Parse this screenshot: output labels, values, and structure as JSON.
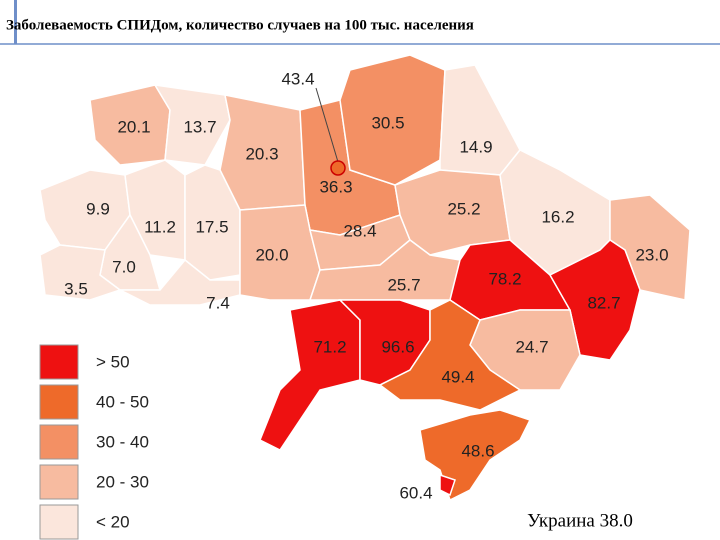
{
  "header": {
    "title": "Заболеваемость СПИДом, количество случаев на 100 тыс. населения"
  },
  "regions": [
    {
      "label": "20.1",
      "color": "#f7bba0"
    },
    {
      "label": "13.7",
      "color": "#fbe6dc"
    },
    {
      "label": "20.3",
      "color": "#f7bba0"
    },
    {
      "label": "36.3",
      "color": "#f39064"
    },
    {
      "label": "30.5",
      "color": "#f39064"
    },
    {
      "label": "14.9",
      "color": "#fbe6dc"
    },
    {
      "label": "9.9",
      "color": "#fbe6dc"
    },
    {
      "label": "11.2",
      "color": "#fbe6dc"
    },
    {
      "label": "17.5",
      "color": "#fbe6dc"
    },
    {
      "label": "7.0",
      "color": "#fbe6dc"
    },
    {
      "label": "3.5",
      "color": "#fbe6dc"
    },
    {
      "label": "7.4",
      "color": "#fbe6dc"
    },
    {
      "label": "20.0",
      "color": "#f7bba0"
    },
    {
      "label": "28.4",
      "color": "#f7bba0"
    },
    {
      "label": "25.2",
      "color": "#f7bba0"
    },
    {
      "label": "16.2",
      "color": "#fbe6dc"
    },
    {
      "label": "23.0",
      "color": "#f7bba0"
    },
    {
      "label": "25.7",
      "color": "#f7bba0"
    },
    {
      "label": "78.2",
      "color": "#ee1111"
    },
    {
      "label": "82.7",
      "color": "#ee1111"
    },
    {
      "label": "71.2",
      "color": "#ee1111"
    },
    {
      "label": "96.6",
      "color": "#ee1111"
    },
    {
      "label": "24.7",
      "color": "#f7bba0"
    },
    {
      "label": "49.4",
      "color": "#ee6a2a"
    },
    {
      "label": "48.6",
      "color": "#ee6a2a"
    },
    {
      "label": "60.4",
      "color": "#ee1111"
    },
    {
      "label": "43.4",
      "color": "#ee6a2a"
    }
  ],
  "legend": [
    {
      "label": "> 50",
      "color": "#ee1111"
    },
    {
      "label": "40 - 50",
      "color": "#ee6a2a"
    },
    {
      "label": "30 - 40",
      "color": "#f39064"
    },
    {
      "label": "20 - 30",
      "color": "#f7bba0"
    },
    {
      "label": "< 20",
      "color": "#fbe6dc"
    }
  ],
  "total": "Украина 38.0"
}
